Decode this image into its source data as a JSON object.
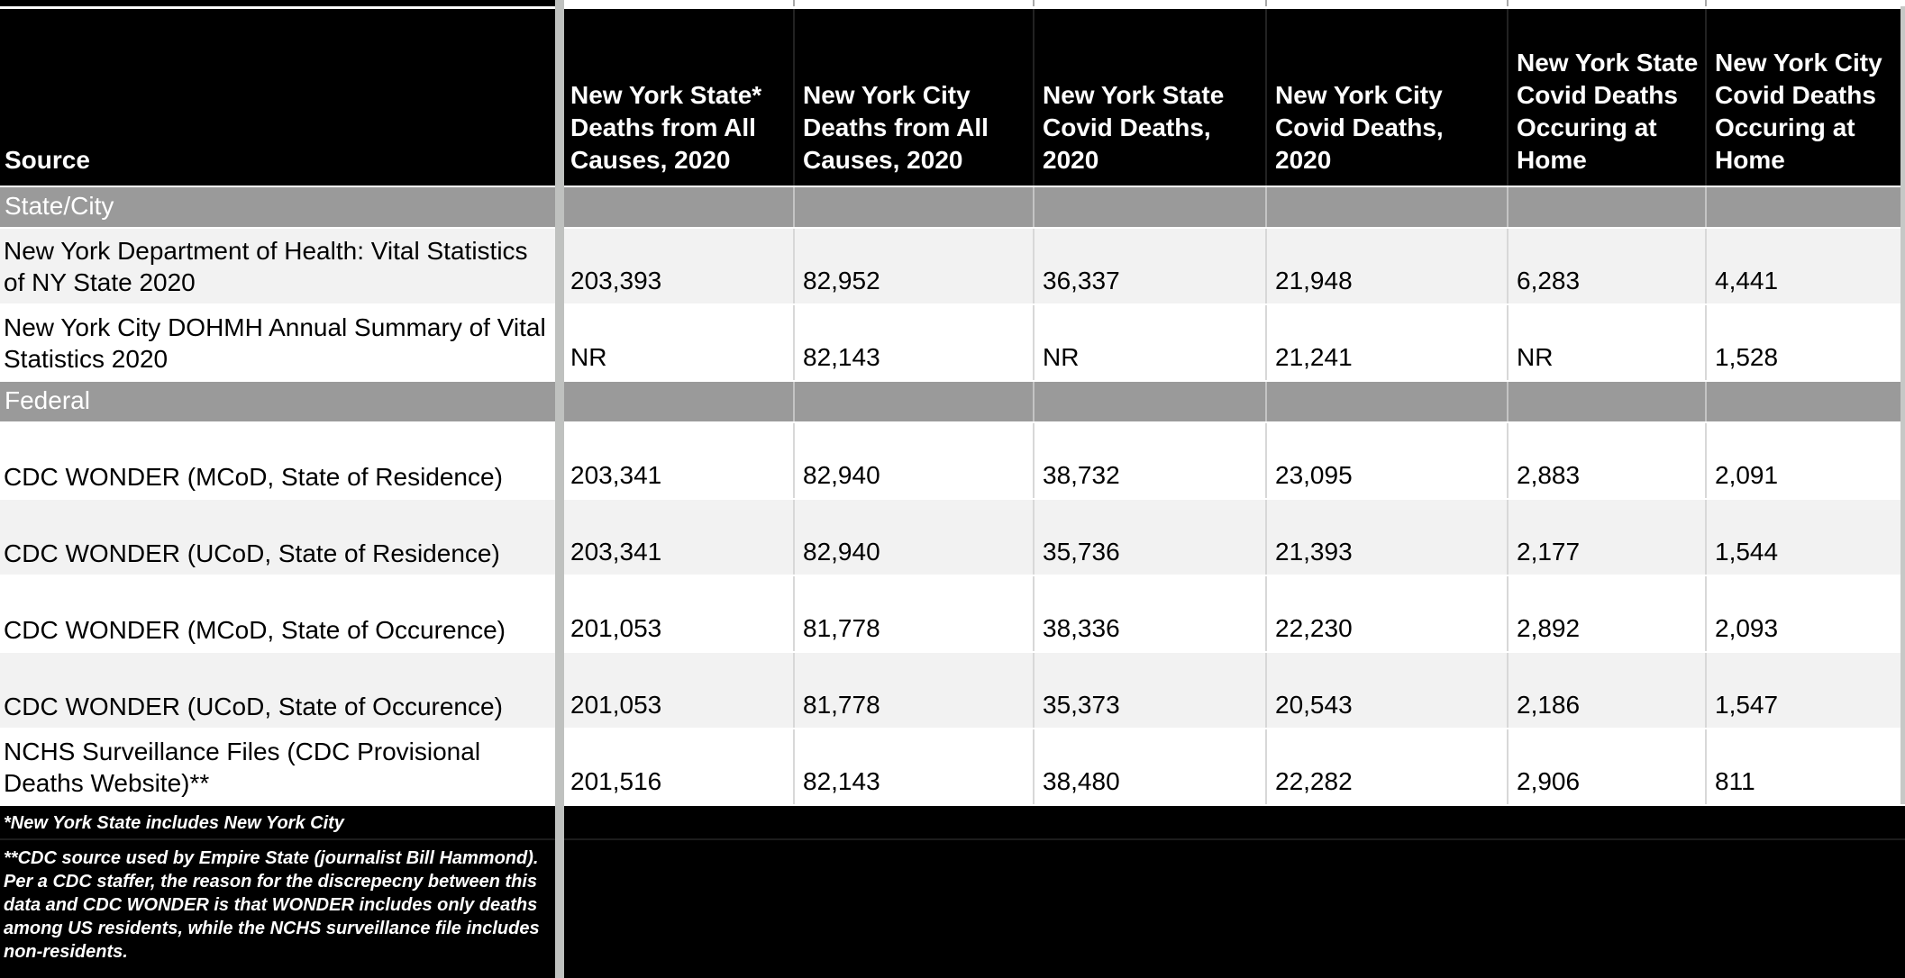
{
  "app_context": "spreadsheet-table-view",
  "colors": {
    "header_bg": "#000000",
    "footer_bg": "#000000",
    "section_bg": "#9a9a9a",
    "row_bg": "#ffffff",
    "row_alt_bg": "#f2f2f2",
    "text_on_dark": "#ffffff",
    "text_on_light": "#000000",
    "freeze_divider": "#bfc1bf",
    "gridline": "#d8d8d8"
  },
  "table": {
    "columns": [
      {
        "label": "Source"
      },
      {
        "label": "New York State* Deaths from All Causes, 2020"
      },
      {
        "label": "New York City Deaths from All Causes, 2020"
      },
      {
        "label": "New York State Covid Deaths, 2020"
      },
      {
        "label": "New York City Covid Deaths, 2020"
      },
      {
        "label": "New York State Covid Deaths Occuring at Home"
      },
      {
        "label": "New York City Covid Deaths Occuring at Home"
      }
    ],
    "rows": [
      {
        "type": "section",
        "label": "State/City"
      },
      {
        "type": "data",
        "shade": "alt",
        "source": "New York Department of Health: Vital Statistics of NY State 2020",
        "values": [
          "203,393",
          "82,952",
          "36,337",
          "21,948",
          "6,283",
          "4,441"
        ]
      },
      {
        "type": "data",
        "shade": "plain",
        "source": "New York City DOHMH Annual Summary of Vital Statistics 2020",
        "values": [
          "NR",
          "82,143",
          "NR",
          "21,241",
          "NR",
          "1,528"
        ]
      },
      {
        "type": "section",
        "label": "Federal"
      },
      {
        "type": "data",
        "shade": "plain",
        "source": "CDC WONDER (MCoD, State of Residence)",
        "values": [
          "203,341",
          "82,940",
          "38,732",
          "23,095",
          "2,883",
          "2,091"
        ]
      },
      {
        "type": "data",
        "shade": "alt",
        "source": "CDC WONDER (UCoD, State of Residence)",
        "values": [
          "203,341",
          "82,940",
          "35,736",
          "21,393",
          "2,177",
          "1,544"
        ]
      },
      {
        "type": "data",
        "shade": "plain",
        "source": "CDC WONDER (MCoD, State of Occurence)",
        "values": [
          "201,053",
          "81,778",
          "38,336",
          "22,230",
          "2,892",
          "2,093"
        ]
      },
      {
        "type": "data",
        "shade": "alt",
        "source": "CDC WONDER (UCoD, State of Occurence)",
        "values": [
          "201,053",
          "81,778",
          "35,373",
          "20,543",
          "2,186",
          "1,547"
        ]
      },
      {
        "type": "data",
        "shade": "plain",
        "source": "NCHS Surveillance Files (CDC Provisional Deaths Website)**",
        "values": [
          "201,516",
          "82,143",
          "38,480",
          "22,282",
          "2,906",
          "811"
        ]
      }
    ]
  },
  "footnotes": {
    "note1": "*New York State includes New York City",
    "note2": "**CDC source used by Empire State (journalist Bill Hammond). Per a CDC staffer, the reason for the discrepecny between this data and CDC WONDER is that WONDER includes only deaths among US residents, while the NCHS surveillance file includes non-residents."
  }
}
